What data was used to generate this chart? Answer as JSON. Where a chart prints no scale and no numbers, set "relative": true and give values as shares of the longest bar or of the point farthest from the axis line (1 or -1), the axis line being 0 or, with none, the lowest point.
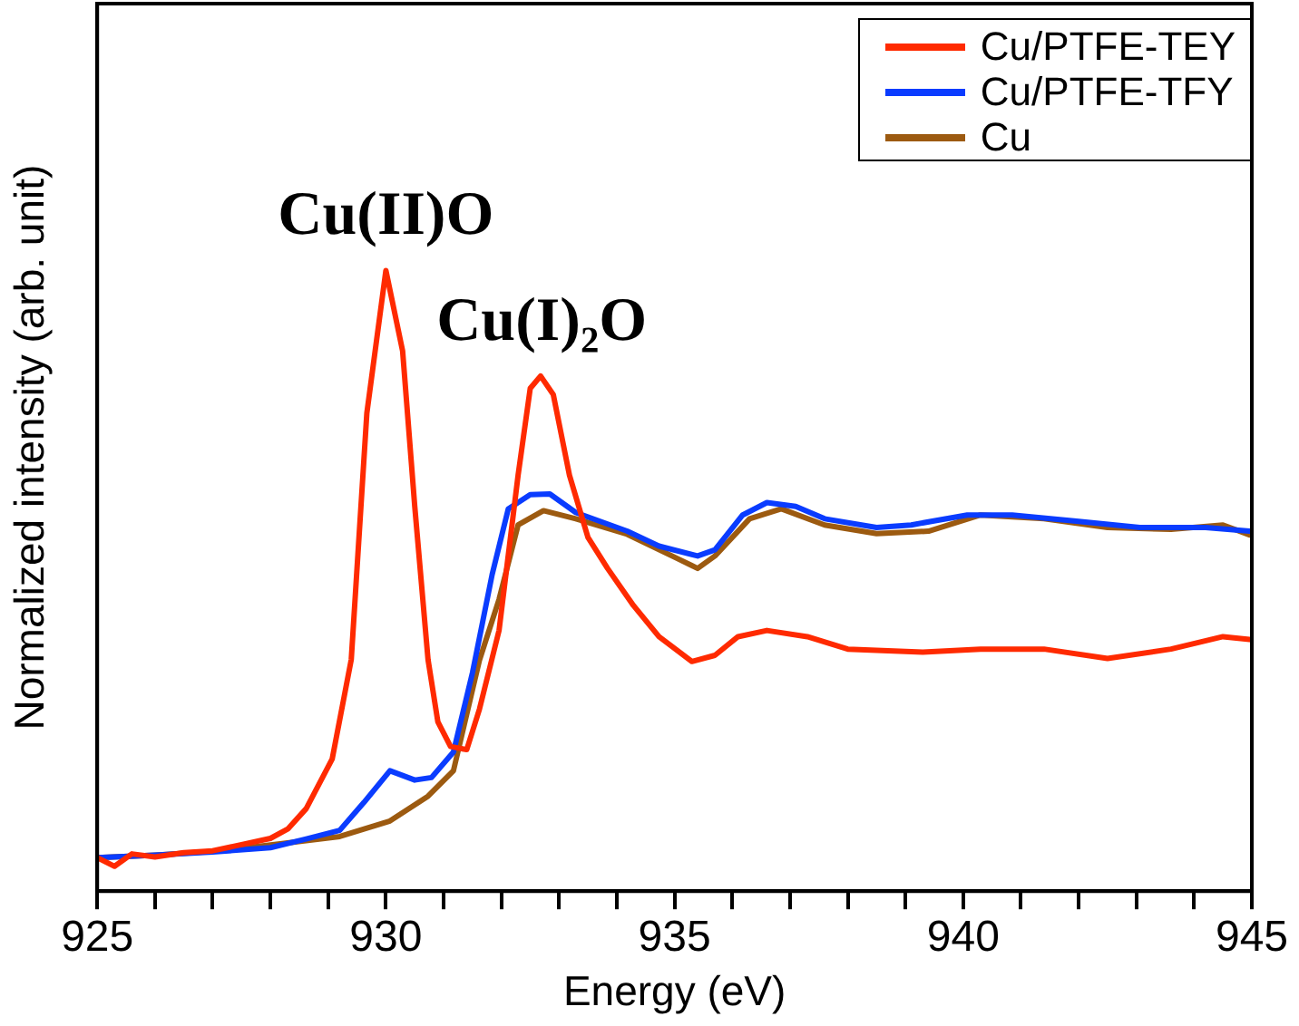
{
  "chart_data": {
    "type": "line",
    "relative": true,
    "xlabel": "Energy (eV)",
    "ylabel": "Normalized intensity (arb. unit)",
    "xlim": [
      925,
      945
    ],
    "xticks": [
      925,
      {
        "value": 926,
        "label": null
      },
      {
        "value": 927,
        "label": null
      },
      {
        "value": 928,
        "label": null
      },
      {
        "value": 929,
        "label": null
      },
      930,
      {
        "value": 931,
        "label": null
      },
      {
        "value": 932,
        "label": null
      },
      {
        "value": 933,
        "label": null
      },
      {
        "value": 934,
        "label": null
      },
      935,
      {
        "value": 936,
        "label": null
      },
      {
        "value": 937,
        "label": null
      },
      {
        "value": 938,
        "label": null
      },
      {
        "value": 939,
        "label": null
      },
      940,
      {
        "value": 941,
        "label": null
      },
      {
        "value": 942,
        "label": null
      },
      {
        "value": 943,
        "label": null
      },
      {
        "value": 944,
        "label": null
      },
      945
    ],
    "legend": "top right",
    "marker": "none",
    "line_style": "solid",
    "grid": false,
    "annotations": [
      {
        "text": "Cu(II)O",
        "x": 930,
        "y": 1.0
      },
      {
        "text": "Cu(I)₂O",
        "x": 932.7,
        "y": 0.83
      }
    ],
    "series": [
      {
        "name": "Cu/PTFE-TEY",
        "color": "#ff2a00",
        "x": [
          925,
          925.3,
          925.6,
          926,
          926.5,
          927,
          927.5,
          928,
          928.3,
          928.62,
          929.07,
          929.4,
          929.67,
          930,
          930.29,
          930.5,
          930.73,
          930.9,
          931.12,
          931.4,
          931.62,
          931.96,
          932.29,
          932.5,
          932.68,
          932.9,
          933.18,
          933.5,
          933.84,
          934.29,
          934.73,
          935.3,
          935.7,
          936.1,
          936.6,
          937.3,
          938,
          939.3,
          940.3,
          941.4,
          942.5,
          943.6,
          944.5,
          945
        ],
        "values": [
          0.054,
          0.04,
          0.06,
          0.055,
          0.062,
          0.065,
          0.075,
          0.085,
          0.1,
          0.133,
          0.213,
          0.373,
          0.77,
          1.0,
          0.87,
          0.62,
          0.373,
          0.273,
          0.233,
          0.228,
          0.293,
          0.42,
          0.67,
          0.81,
          0.83,
          0.8,
          0.67,
          0.57,
          0.52,
          0.46,
          0.41,
          0.37,
          0.38,
          0.41,
          0.42,
          0.41,
          0.39,
          0.385,
          0.39,
          0.39,
          0.375,
          0.39,
          0.41,
          0.405
        ]
      },
      {
        "name": "Cu/PTFE-TFY",
        "color": "#0a3cff",
        "x": [
          925,
          926,
          927,
          928,
          928.62,
          929.2,
          929.62,
          930.07,
          930.5,
          930.79,
          931.17,
          931.5,
          931.84,
          932.12,
          932.5,
          932.84,
          933.29,
          934.18,
          934.73,
          935.4,
          935.7,
          936.18,
          936.6,
          937.1,
          937.6,
          938.5,
          939.1,
          940.07,
          940.85,
          941.96,
          943.06,
          944.2,
          944.96
        ],
        "values": [
          0.054,
          0.058,
          0.063,
          0.07,
          0.084,
          0.098,
          0.143,
          0.194,
          0.179,
          0.183,
          0.224,
          0.352,
          0.51,
          0.616,
          0.639,
          0.64,
          0.61,
          0.58,
          0.556,
          0.54,
          0.55,
          0.606,
          0.626,
          0.62,
          0.6,
          0.586,
          0.59,
          0.606,
          0.606,
          0.596,
          0.586,
          0.586,
          0.58
        ]
      },
      {
        "name": "Cu",
        "color": "#9c5a10",
        "x": [
          925,
          926,
          927,
          928.07,
          929.2,
          930.07,
          930.73,
          931.17,
          931.62,
          931.96,
          932.29,
          932.73,
          933.29,
          934.18,
          935.07,
          935.4,
          935.7,
          936.3,
          936.85,
          937.6,
          938.5,
          939.4,
          940.3,
          941.4,
          942.5,
          943.6,
          944.5,
          944.96
        ],
        "values": [
          0.054,
          0.058,
          0.064,
          0.075,
          0.088,
          0.113,
          0.153,
          0.194,
          0.372,
          0.47,
          0.59,
          0.613,
          0.6,
          0.575,
          0.535,
          0.52,
          0.54,
          0.6,
          0.616,
          0.59,
          0.576,
          0.58,
          0.606,
          0.6,
          0.586,
          0.583,
          0.59,
          0.574
        ]
      }
    ]
  }
}
